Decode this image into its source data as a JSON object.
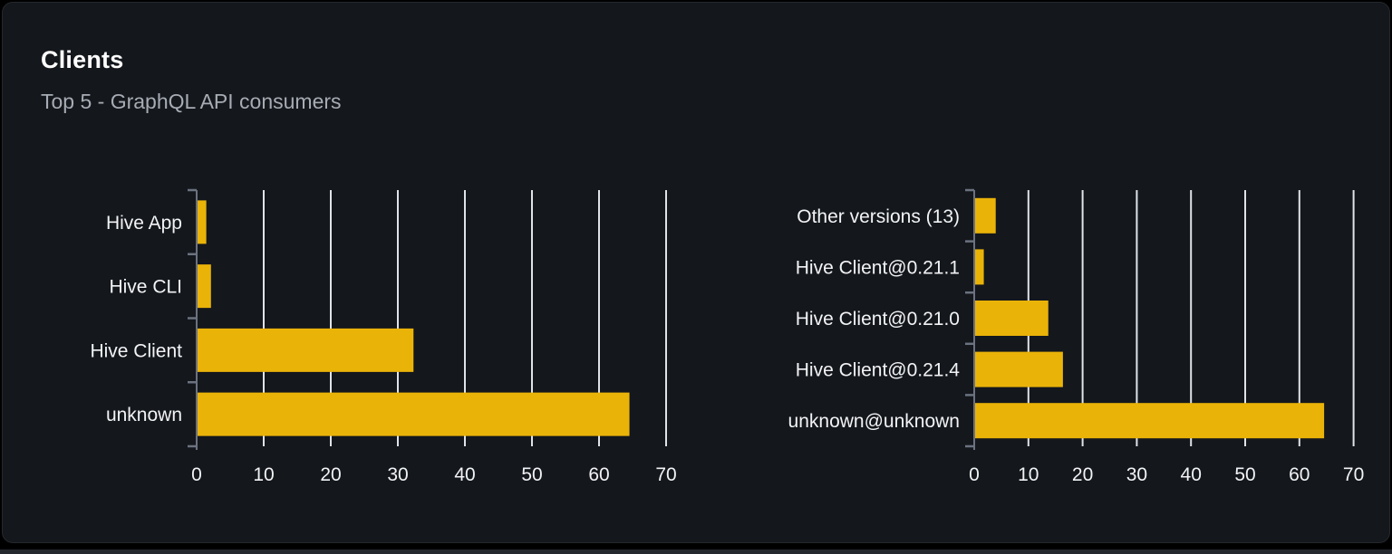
{
  "card": {
    "title": "Clients",
    "subtitle": "Top 5 - GraphQL API consumers"
  },
  "colors": {
    "page_bg": "#000000",
    "card_bg": "#14171c",
    "bar": "#eab308",
    "gridline": "#dfe3ea",
    "axis": "#6b7280",
    "tick_label": "#f2f3f5",
    "category_label": "#f2f3f5",
    "subtitle": "#a7acb4"
  },
  "chart_data": [
    {
      "type": "bar",
      "orientation": "horizontal",
      "title": "",
      "xlabel": "",
      "ylabel": "",
      "categories": [
        "Hive App",
        "Hive CLI",
        "Hive Client",
        "unknown"
      ],
      "values": [
        1.3,
        2,
        32.2,
        64.4
      ],
      "xlim": [
        0,
        70
      ],
      "xticks": [
        0,
        10,
        20,
        30,
        40,
        50,
        60,
        70
      ],
      "grid": true,
      "legend": "none"
    },
    {
      "type": "bar",
      "orientation": "horizontal",
      "title": "",
      "xlabel": "",
      "ylabel": "",
      "categories": [
        "Other versions (13)",
        "Hive Client@0.21.1",
        "Hive Client@0.21.0",
        "Hive Client@0.21.4",
        "unknown@unknown"
      ],
      "values": [
        3.8,
        1.6,
        13.5,
        16.2,
        64.4
      ],
      "xlim": [
        0,
        70
      ],
      "xticks": [
        0,
        10,
        20,
        30,
        40,
        50,
        60,
        70
      ],
      "grid": true,
      "legend": "none"
    }
  ]
}
